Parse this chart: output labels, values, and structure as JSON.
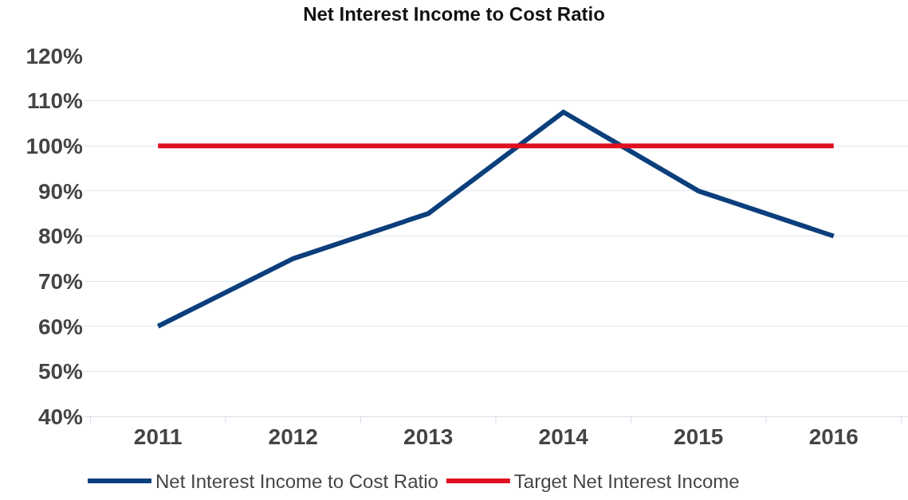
{
  "chart_data": {
    "type": "line",
    "title": "Net Interest Income to Cost Ratio",
    "categories": [
      "2011",
      "2012",
      "2013",
      "2014",
      "2015",
      "2016"
    ],
    "series": [
      {
        "name": "Net Interest Income to Cost Ratio",
        "color": "#0b3f7c",
        "values": [
          60,
          75,
          85,
          107.5,
          90,
          80
        ]
      },
      {
        "name": "Target Net Interest Income",
        "color": "#e01020",
        "values": [
          100,
          100,
          100,
          100,
          100,
          100
        ]
      }
    ],
    "ylim": [
      40,
      120
    ],
    "yticks": [
      {
        "value": 40,
        "label": "40%"
      },
      {
        "value": 50,
        "label": "50%"
      },
      {
        "value": 60,
        "label": "60%"
      },
      {
        "value": 70,
        "label": "70%"
      },
      {
        "value": 80,
        "label": "80%"
      },
      {
        "value": 90,
        "label": "90%"
      },
      {
        "value": 100,
        "label": "100%"
      },
      {
        "value": 110,
        "label": "110%"
      },
      {
        "value": 120,
        "label": "120%"
      }
    ],
    "grid": "y",
    "legend": "bottom",
    "marker": "none",
    "line_style": "solid"
  }
}
